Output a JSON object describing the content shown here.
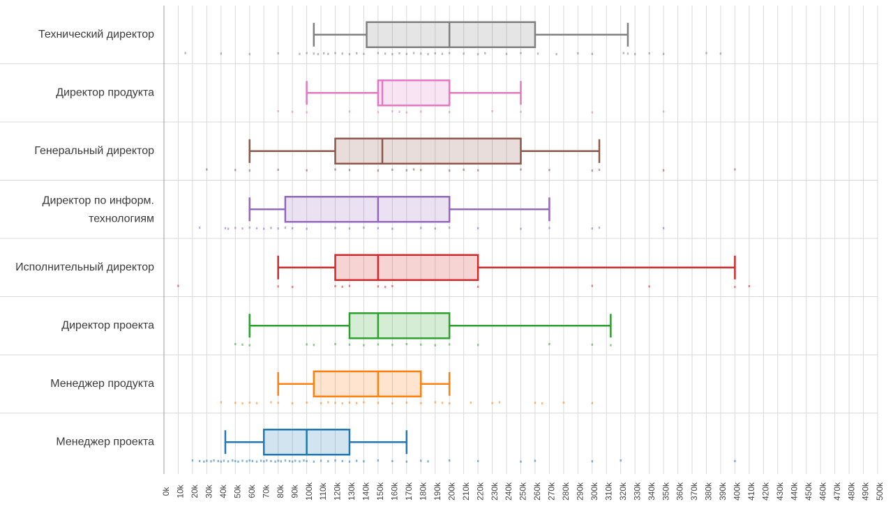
{
  "chart_data": {
    "type": "boxplot",
    "orientation": "horizontal",
    "title": "",
    "xlabel": "",
    "ylabel": "",
    "xlim": [
      0,
      500000
    ],
    "x_tick_step": 10000,
    "x_tick_labels": [
      "0k",
      "10k",
      "20k",
      "30k",
      "40k",
      "50k",
      "60k",
      "70k",
      "80k",
      "90k",
      "100k",
      "110k",
      "120k",
      "130k",
      "140k",
      "150k",
      "160k",
      "170k",
      "180k",
      "190k",
      "200k",
      "210k",
      "220k",
      "230k",
      "240k",
      "250k",
      "260k",
      "270k",
      "280k",
      "290k",
      "300k",
      "310k",
      "320k",
      "330k",
      "340k",
      "350k",
      "360k",
      "370k",
      "380k",
      "390k",
      "400k",
      "410k",
      "420k",
      "430k",
      "440k",
      "450k",
      "460k",
      "470k",
      "480k",
      "490k",
      "500k"
    ],
    "grid": true,
    "categories": [
      {
        "label": "Технический директор",
        "color": "#7f7f7f",
        "whisker_low": 105000,
        "q1": 142000,
        "median": 200000,
        "q3": 260000,
        "whisker_high": 325000,
        "points": [
          15000,
          40000,
          60000,
          80000,
          95000,
          100000,
          105000,
          108000,
          112000,
          115000,
          120000,
          125000,
          130000,
          135000,
          140000,
          150000,
          155000,
          160000,
          165000,
          170000,
          175000,
          180000,
          185000,
          190000,
          195000,
          200000,
          210000,
          220000,
          225000,
          240000,
          250000,
          262000,
          275000,
          290000,
          300000,
          322000,
          325000,
          330000,
          340000,
          350000,
          380000,
          390000
        ]
      },
      {
        "label": "Директор продукта",
        "color": "#e377c2",
        "whisker_low": 100000,
        "q1": 150000,
        "median": 153000,
        "q3": 200000,
        "whisker_high": 250000,
        "points": [
          80000,
          90000,
          100000,
          130000,
          150000,
          160000,
          165000,
          170000,
          180000,
          200000,
          230000,
          250000,
          300000,
          350000
        ]
      },
      {
        "label": "Генеральный директор",
        "color": "#8c564b",
        "whisker_low": 60000,
        "q1": 120000,
        "median": 153000,
        "q3": 250000,
        "whisker_high": 305000,
        "points": [
          30000,
          50000,
          60000,
          80000,
          100000,
          120000,
          130000,
          150000,
          160000,
          170000,
          175000,
          180000,
          200000,
          210000,
          220000,
          250000,
          270000,
          300000,
          305000,
          350000,
          400000
        ]
      },
      {
        "label": [
          "Директор по информ.",
          "технологиям"
        ],
        "color": "#9467bd",
        "whisker_low": 60000,
        "q1": 85000,
        "median": 150000,
        "q3": 200000,
        "whisker_high": 270000,
        "points": [
          25000,
          43000,
          45000,
          50000,
          55000,
          60000,
          65000,
          70000,
          75000,
          80000,
          85000,
          90000,
          100000,
          120000,
          130000,
          140000,
          150000,
          160000,
          180000,
          190000,
          200000,
          220000,
          250000,
          270000,
          300000,
          305000,
          350000
        ]
      },
      {
        "label": "Исполнительный директор",
        "color": "#d62728",
        "whisker_low": 80000,
        "q1": 120000,
        "median": 150000,
        "q3": 220000,
        "whisker_high": 400000,
        "points": [
          10000,
          80000,
          90000,
          120000,
          125000,
          130000,
          150000,
          155000,
          160000,
          220000,
          300000,
          340000,
          400000,
          410000
        ]
      },
      {
        "label": "Директор проекта",
        "color": "#2ca02c",
        "whisker_low": 60000,
        "q1": 130000,
        "median": 150000,
        "q3": 200000,
        "whisker_high": 313000,
        "points": [
          50000,
          55000,
          60000,
          100000,
          105000,
          120000,
          130000,
          140000,
          150000,
          160000,
          170000,
          180000,
          190000,
          200000,
          220000,
          270000,
          300000,
          313000
        ]
      },
      {
        "label": "Менеджер продукта",
        "color": "#ff7f0e",
        "whisker_low": 80000,
        "q1": 105000,
        "median": 150000,
        "q3": 180000,
        "whisker_high": 200000,
        "points": [
          40000,
          50000,
          55000,
          60000,
          65000,
          75000,
          80000,
          90000,
          100000,
          110000,
          115000,
          120000,
          125000,
          130000,
          135000,
          140000,
          150000,
          160000,
          170000,
          180000,
          190000,
          195000,
          200000,
          215000,
          230000,
          235000,
          260000,
          265000,
          280000,
          300000
        ]
      },
      {
        "label": "Менеджер проекта",
        "color": "#1f77b4",
        "whisker_low": 43000,
        "q1": 70000,
        "median": 100000,
        "q3": 130000,
        "whisker_high": 170000,
        "points": [
          20000,
          25000,
          28000,
          30000,
          33000,
          35000,
          38000,
          40000,
          42000,
          45000,
          48000,
          50000,
          52000,
          55000,
          58000,
          60000,
          62000,
          65000,
          68000,
          70000,
          72000,
          75000,
          78000,
          80000,
          82000,
          85000,
          88000,
          90000,
          92000,
          95000,
          98000,
          100000,
          105000,
          110000,
          115000,
          120000,
          125000,
          130000,
          135000,
          140000,
          150000,
          160000,
          170000,
          180000,
          185000,
          200000,
          220000,
          250000,
          260000,
          300000,
          320000,
          400000
        ]
      }
    ]
  }
}
